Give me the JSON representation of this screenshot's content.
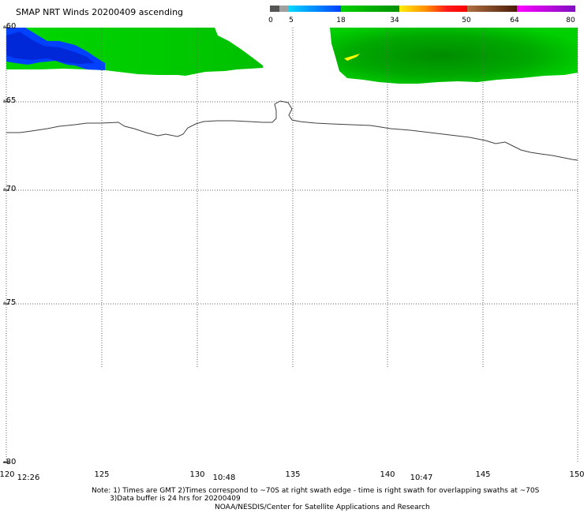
{
  "header": {
    "title": "SMAP NRT Winds 20200409 ascending"
  },
  "colorbar": {
    "tick_labels": [
      "0",
      "5",
      "18",
      "34",
      "50",
      "64",
      "80"
    ],
    "colors": {
      "gray_dark": "#555555",
      "gray_light": "#a0a0a0",
      "cyan": "#00c8ff",
      "blue": "#0050ff",
      "green_light": "#00cc00",
      "green_dark": "#009000",
      "yellow": "#ffee00",
      "orange": "#ff8c00",
      "red": "#ff1a1a",
      "brown": "#9a5a28",
      "brown_dark": "#5a2a10",
      "magenta": "#ff00ff",
      "purple": "#8a10c8"
    }
  },
  "map": {
    "lat_labels": [
      "-60",
      "-65",
      "-70",
      "-75",
      "-80"
    ],
    "lon_labels": [
      "120",
      "125",
      "130",
      "135",
      "140",
      "145",
      "150"
    ],
    "time_labels": [
      "12:26",
      "10:48",
      "10:47"
    ],
    "swath_colors": {
      "green": "#00d000",
      "green_dark": "#00a000",
      "blue": "#0040ff",
      "yellow": "#ffff00"
    }
  },
  "footer": {
    "note_line1": "Note: 1) Times are GMT 2)Times correspond to ~70S at right swath edge - time is right swath for overlapping swaths at ~70S",
    "note_line2": "3)Data buffer is 24 hrs for 20200409",
    "credit": "NOAA/NESDIS/Center for Satellite Applications and Research"
  }
}
